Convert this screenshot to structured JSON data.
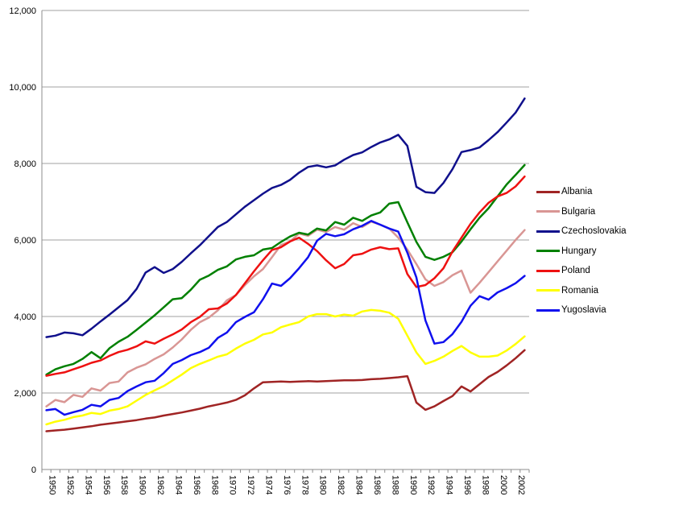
{
  "chart_data": {
    "type": "line",
    "title": "",
    "xlabel": "",
    "ylabel": "",
    "ylim": [
      0,
      12000
    ],
    "grid": true,
    "legend_position": "right",
    "x": [
      1950,
      1951,
      1952,
      1953,
      1954,
      1955,
      1956,
      1957,
      1958,
      1959,
      1960,
      1961,
      1962,
      1963,
      1964,
      1965,
      1966,
      1967,
      1968,
      1969,
      1970,
      1971,
      1972,
      1973,
      1974,
      1975,
      1976,
      1977,
      1978,
      1979,
      1980,
      1981,
      1982,
      1983,
      1984,
      1985,
      1986,
      1987,
      1988,
      1989,
      1990,
      1991,
      1992,
      1993,
      1994,
      1995,
      1996,
      1997,
      1998,
      1999,
      2000,
      2001,
      2002,
      2003
    ],
    "x_tick_labels": [
      "1950",
      "1952",
      "1954",
      "1956",
      "1958",
      "1960",
      "1962",
      "1964",
      "1966",
      "1968",
      "1970",
      "1972",
      "1974",
      "1976",
      "1978",
      "1980",
      "1982",
      "1984",
      "1986",
      "1988",
      "1990",
      "1992",
      "1994",
      "1996",
      "1998",
      "2000",
      "2002"
    ],
    "y_ticks": [
      0,
      2000,
      4000,
      6000,
      8000,
      10000,
      12000
    ],
    "y_tick_labels": [
      "0",
      "2,000",
      "4,000",
      "6,000",
      "8,000",
      "10,000",
      "12,000"
    ],
    "axis_color": "#8C8C8C",
    "gridline_color": "#A0A0A0",
    "series": [
      {
        "name": "Albania",
        "color": "#A02424",
        "values": [
          1000,
          1020,
          1040,
          1070,
          1100,
          1130,
          1170,
          1200,
          1230,
          1260,
          1290,
          1330,
          1360,
          1410,
          1450,
          1490,
          1540,
          1590,
          1650,
          1700,
          1750,
          1820,
          1940,
          2120,
          2280,
          2290,
          2300,
          2290,
          2300,
          2310,
          2300,
          2310,
          2320,
          2330,
          2330,
          2340,
          2360,
          2370,
          2390,
          2410,
          2440,
          1750,
          1560,
          1650,
          1790,
          1920,
          2170,
          2040,
          2230,
          2420,
          2550,
          2720,
          2910,
          3120
        ]
      },
      {
        "name": "Bulgaria",
        "color": "#D99694",
        "values": [
          1650,
          1820,
          1760,
          1950,
          1900,
          2120,
          2060,
          2260,
          2300,
          2540,
          2660,
          2750,
          2890,
          3010,
          3190,
          3400,
          3650,
          3850,
          3970,
          4160,
          4420,
          4560,
          4820,
          5050,
          5240,
          5550,
          5870,
          5960,
          6170,
          6110,
          6270,
          6210,
          6340,
          6270,
          6440,
          6340,
          6480,
          6400,
          6300,
          6060,
          5750,
          5370,
          4970,
          4800,
          4900,
          5080,
          5200,
          4620,
          4880,
          5160,
          5440,
          5720,
          6000,
          6260
        ]
      },
      {
        "name": "Czechoslovakia",
        "color": "#10108C",
        "values": [
          3460,
          3500,
          3580,
          3560,
          3510,
          3680,
          3870,
          4050,
          4240,
          4430,
          4720,
          5150,
          5290,
          5140,
          5240,
          5430,
          5650,
          5860,
          6100,
          6340,
          6470,
          6670,
          6870,
          7040,
          7210,
          7360,
          7440,
          7570,
          7760,
          7910,
          7950,
          7900,
          7950,
          8100,
          8220,
          8290,
          8430,
          8550,
          8630,
          8750,
          8460,
          7390,
          7250,
          7230,
          7490,
          7850,
          8300,
          8350,
          8420,
          8610,
          8820,
          9070,
          9330,
          9700
        ]
      },
      {
        "name": "Hungary",
        "color": "#008000",
        "values": [
          2480,
          2620,
          2700,
          2760,
          2890,
          3070,
          2910,
          3170,
          3340,
          3470,
          3650,
          3840,
          4030,
          4240,
          4450,
          4480,
          4700,
          4960,
          5070,
          5220,
          5310,
          5490,
          5560,
          5600,
          5750,
          5790,
          5950,
          6090,
          6190,
          6140,
          6300,
          6250,
          6470,
          6400,
          6580,
          6500,
          6640,
          6720,
          6950,
          6990,
          6460,
          5950,
          5560,
          5480,
          5560,
          5680,
          5960,
          6280,
          6580,
          6830,
          7140,
          7450,
          7700,
          7960
        ]
      },
      {
        "name": "Poland",
        "color": "#EE1111",
        "values": [
          2450,
          2500,
          2540,
          2620,
          2700,
          2790,
          2850,
          2970,
          3070,
          3130,
          3220,
          3350,
          3290,
          3420,
          3530,
          3660,
          3850,
          3990,
          4190,
          4210,
          4340,
          4560,
          4870,
          5180,
          5470,
          5740,
          5810,
          5960,
          6060,
          5900,
          5710,
          5470,
          5260,
          5370,
          5600,
          5640,
          5750,
          5810,
          5760,
          5780,
          5110,
          4770,
          4820,
          5000,
          5260,
          5700,
          6060,
          6420,
          6720,
          6970,
          7140,
          7230,
          7400,
          7660
        ]
      },
      {
        "name": "Romania",
        "color": "#FFFF00",
        "values": [
          1180,
          1250,
          1300,
          1370,
          1410,
          1480,
          1450,
          1540,
          1580,
          1650,
          1800,
          1950,
          2070,
          2180,
          2330,
          2480,
          2650,
          2760,
          2850,
          2950,
          3010,
          3160,
          3290,
          3390,
          3530,
          3580,
          3720,
          3790,
          3850,
          4000,
          4060,
          4060,
          4000,
          4050,
          4020,
          4130,
          4170,
          4150,
          4100,
          3940,
          3500,
          3060,
          2760,
          2840,
          2950,
          3100,
          3230,
          3060,
          2950,
          2950,
          2980,
          3110,
          3280,
          3480
        ]
      },
      {
        "name": "Yugoslavia",
        "color": "#1010EE",
        "values": [
          1550,
          1580,
          1430,
          1500,
          1560,
          1690,
          1650,
          1820,
          1870,
          2050,
          2170,
          2280,
          2320,
          2520,
          2760,
          2860,
          2990,
          3070,
          3180,
          3440,
          3580,
          3850,
          3990,
          4110,
          4450,
          4860,
          4800,
          5000,
          5260,
          5550,
          5980,
          6160,
          6100,
          6150,
          6280,
          6370,
          6500,
          6400,
          6300,
          6220,
          5670,
          5020,
          3900,
          3290,
          3330,
          3540,
          3860,
          4280,
          4530,
          4440,
          4630,
          4740,
          4870,
          5060
        ]
      }
    ]
  }
}
